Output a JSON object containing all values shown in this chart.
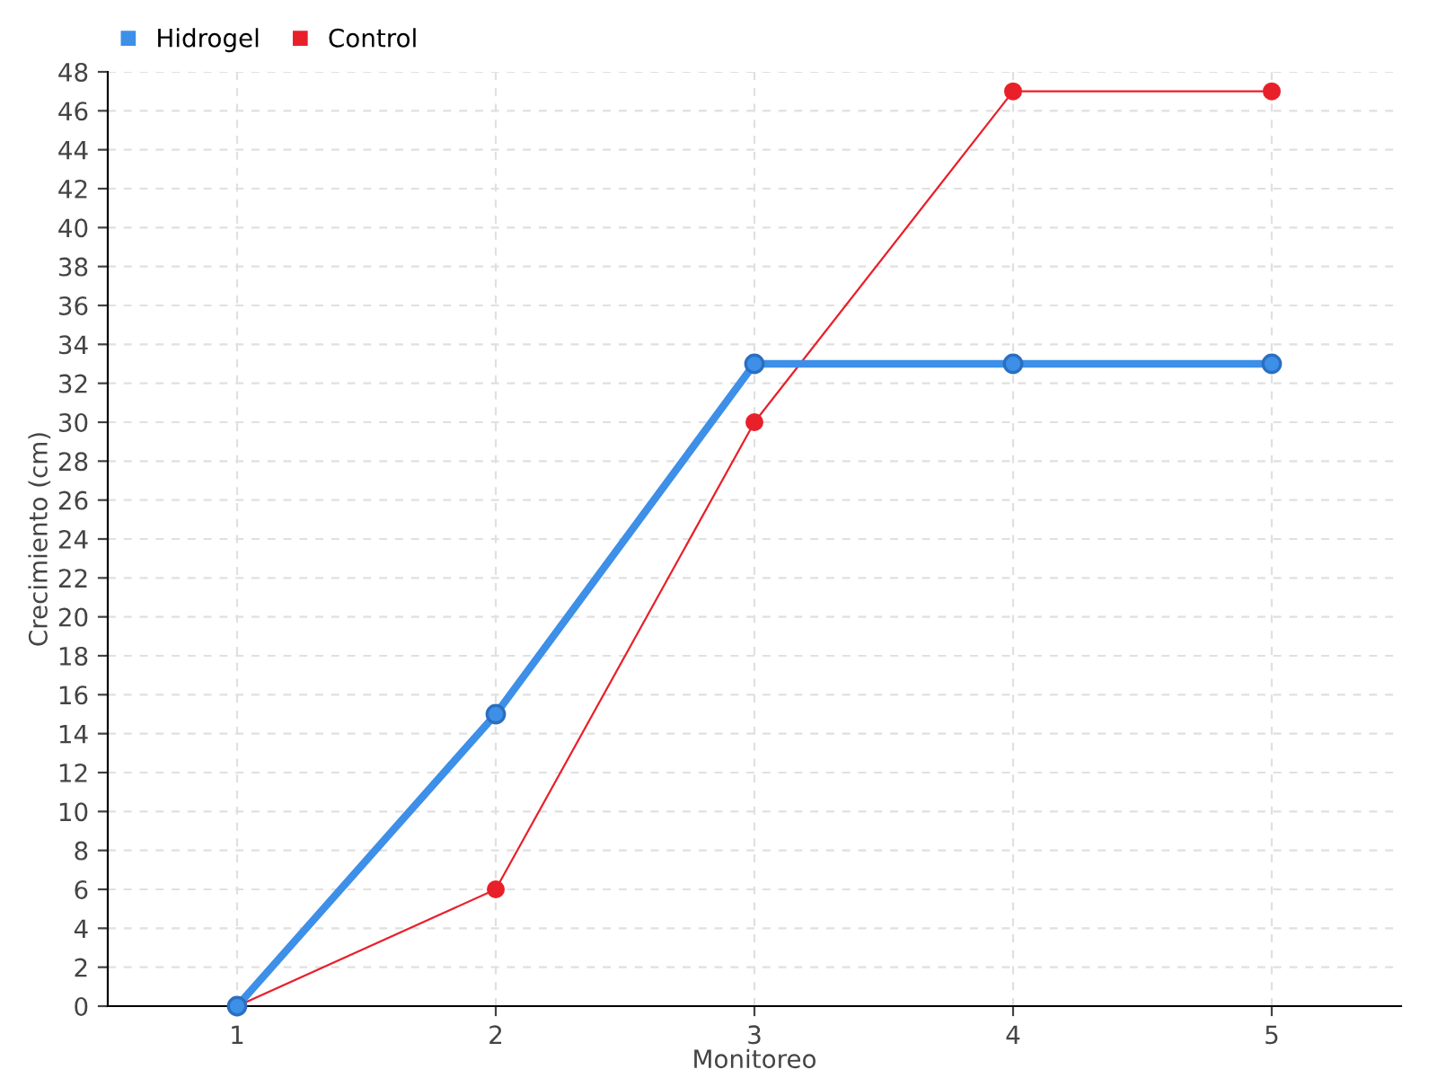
{
  "chart_data": {
    "type": "line",
    "xlabel": "Monitoreo",
    "ylabel": "Crecimiento (cm)",
    "categories": [
      "1",
      "2",
      "3",
      "4",
      "5"
    ],
    "series": [
      {
        "name": "Hidrogel",
        "color": "#3d8fe8",
        "values": [
          0,
          15,
          33,
          33,
          33
        ]
      },
      {
        "name": "Control",
        "color": "#e8202a",
        "values": [
          0,
          6,
          30,
          47,
          47
        ]
      }
    ],
    "ylim": [
      0,
      48
    ],
    "yticks": [
      0,
      2,
      4,
      6,
      8,
      10,
      12,
      14,
      16,
      18,
      20,
      22,
      24,
      26,
      28,
      30,
      32,
      34,
      36,
      38,
      40,
      42,
      44,
      46,
      48
    ],
    "grid": true,
    "legend": "top left",
    "marker": "circle",
    "line_style": "solid"
  }
}
